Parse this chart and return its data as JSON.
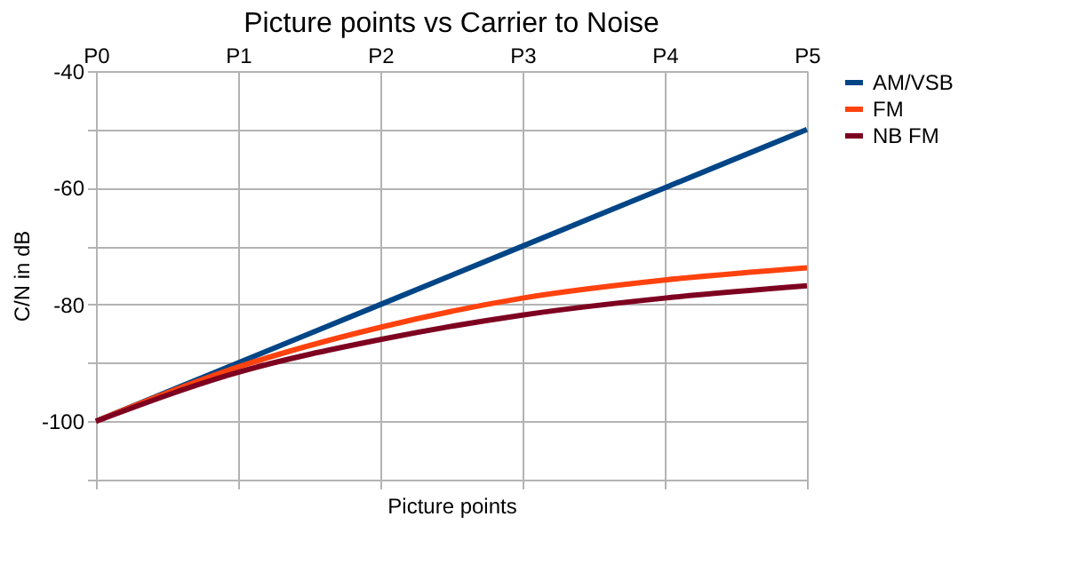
{
  "chart_data": {
    "type": "line",
    "title": "Picture points vs Carrier to Noise",
    "xlabel": "Picture points",
    "ylabel": "C/N in dB",
    "categories": [
      "P0",
      "P1",
      "P2",
      "P3",
      "P4",
      "P5"
    ],
    "series": [
      {
        "name": "AM/VSB",
        "color": "#004586",
        "values": [
          -100,
          -90,
          -80,
          -70,
          -60,
          -50
        ]
      },
      {
        "name": "FM",
        "color": "#ff420e",
        "values": [
          -100,
          -90.7,
          -83.9,
          -78.9,
          -75.8,
          -73.7
        ]
      },
      {
        "name": "NB FM",
        "color": "#7e0021",
        "values": [
          -100,
          -91.6,
          -86,
          -81.8,
          -78.9,
          -76.8
        ]
      }
    ],
    "ylim": [
      -110,
      -40
    ],
    "yticks": [
      {
        "value": -110,
        "label": null
      },
      -100,
      {
        "value": -90,
        "label": null
      },
      -80,
      {
        "value": -70,
        "label": null
      },
      -60,
      {
        "value": -50,
        "label": null
      },
      -40
    ],
    "grid": true,
    "legend": "right",
    "marker": "none",
    "line_style": "solid"
  }
}
